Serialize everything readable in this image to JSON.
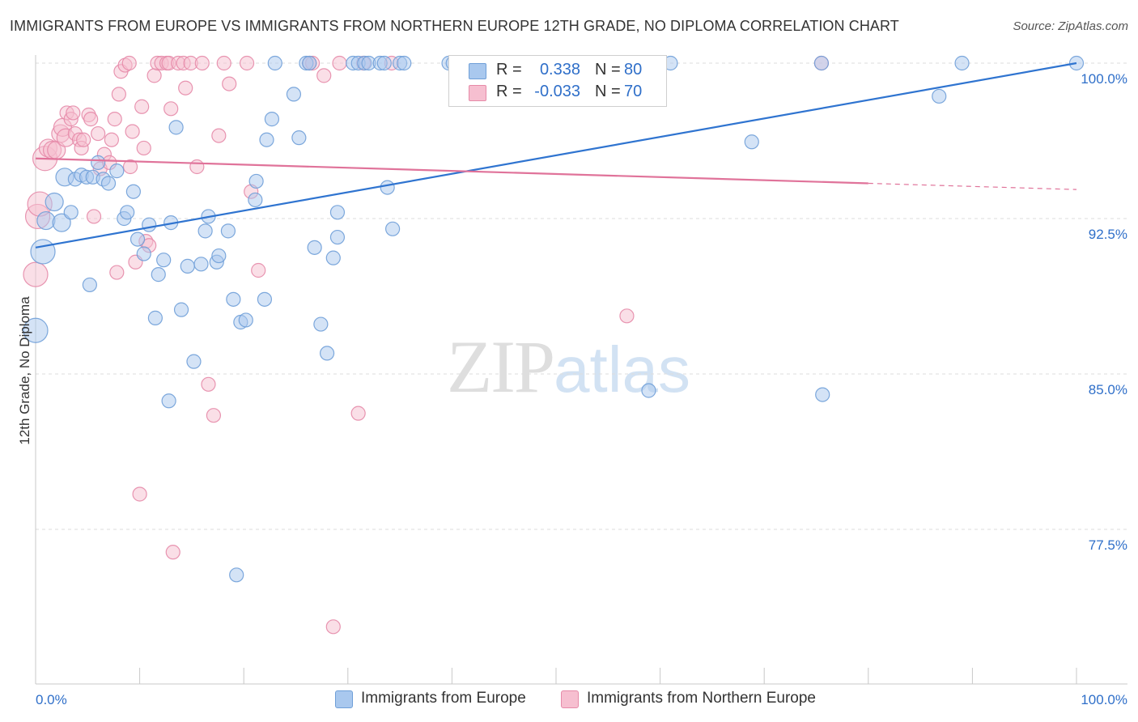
{
  "header": {
    "title": "IMMIGRANTS FROM EUROPE VS IMMIGRANTS FROM NORTHERN EUROPE 12TH GRADE, NO DIPLOMA CORRELATION CHART",
    "source": "Source: ZipAtlas.com"
  },
  "watermark": {
    "zip": "ZIP",
    "atlas": "atlas"
  },
  "legend": {
    "rows": [
      {
        "r_label": "R =",
        "r_value": "0.338",
        "n_label": "N =",
        "n_value": "80"
      },
      {
        "r_label": "R =",
        "r_value": "-0.033",
        "n_label": "N =",
        "n_value": "70"
      }
    ]
  },
  "bottom_legend": {
    "series1": "Immigrants from Europe",
    "series2": "Immigrants from Northern Europe"
  },
  "colors": {
    "blue_fill": "#a9c8ee",
    "blue_stroke": "#6f9fd8",
    "blue_line": "#2f74d0",
    "pink_fill": "#f6bfd0",
    "pink_stroke": "#e68aa8",
    "pink_line": "#e0739a",
    "value_text": "#2f6fc9",
    "grid": "#dddddd"
  },
  "chart_data": {
    "type": "scatter",
    "xlabel": "",
    "ylabel": "12th Grade, No Diploma",
    "xlim": [
      0,
      100
    ],
    "ylim": [
      71,
      101.4
    ],
    "x_tick_labels": [
      "0.0%",
      "100.0%"
    ],
    "y_ticks": [
      77.5,
      85.0,
      92.5,
      100.0
    ],
    "y_tick_labels": [
      "77.5%",
      "85.0%",
      "92.5%",
      "100.0%"
    ],
    "grid": true,
    "legend_position": "top-center",
    "series": [
      {
        "name": "Immigrants from Europe",
        "r": 0.338,
        "n": 80,
        "trend": {
          "x": [
            0,
            100
          ],
          "y": [
            91.1,
            100.0
          ]
        },
        "points": [
          [
            0.0,
            87.1
          ],
          [
            0.7,
            90.9
          ],
          [
            1.0,
            92.4
          ],
          [
            1.8,
            93.3
          ],
          [
            2.5,
            92.3
          ],
          [
            3.4,
            92.8
          ],
          [
            2.8,
            94.5
          ],
          [
            3.8,
            94.4
          ],
          [
            4.4,
            94.6
          ],
          [
            4.9,
            94.5
          ],
          [
            5.5,
            94.5
          ],
          [
            5.2,
            89.3
          ],
          [
            6.0,
            95.2
          ],
          [
            6.5,
            94.4
          ],
          [
            7.0,
            94.2
          ],
          [
            7.8,
            94.8
          ],
          [
            8.5,
            92.5
          ],
          [
            8.8,
            92.8
          ],
          [
            9.4,
            93.8
          ],
          [
            9.8,
            91.5
          ],
          [
            10.4,
            90.8
          ],
          [
            10.9,
            92.2
          ],
          [
            11.5,
            87.7
          ],
          [
            11.8,
            89.8
          ],
          [
            12.3,
            90.5
          ],
          [
            12.8,
            83.7
          ],
          [
            13.0,
            92.3
          ],
          [
            13.5,
            96.9
          ],
          [
            14.0,
            88.1
          ],
          [
            14.6,
            90.2
          ],
          [
            15.2,
            85.6
          ],
          [
            15.9,
            90.3
          ],
          [
            16.3,
            91.9
          ],
          [
            16.6,
            92.6
          ],
          [
            17.4,
            90.4
          ],
          [
            17.6,
            90.7
          ],
          [
            18.5,
            91.9
          ],
          [
            19.0,
            88.6
          ],
          [
            19.3,
            75.3
          ],
          [
            19.7,
            87.5
          ],
          [
            20.2,
            87.6
          ],
          [
            21.2,
            94.3
          ],
          [
            21.1,
            93.4
          ],
          [
            22.0,
            88.6
          ],
          [
            22.2,
            96.3
          ],
          [
            22.7,
            97.3
          ],
          [
            23.0,
            100.0
          ],
          [
            24.8,
            98.5
          ],
          [
            25.3,
            96.4
          ],
          [
            26.0,
            100.0
          ],
          [
            26.3,
            100.0
          ],
          [
            26.8,
            91.1
          ],
          [
            27.4,
            87.4
          ],
          [
            28.0,
            86.0
          ],
          [
            29.0,
            92.8
          ],
          [
            29.0,
            91.6
          ],
          [
            28.6,
            90.6
          ],
          [
            30.5,
            100.0
          ],
          [
            31.0,
            100.0
          ],
          [
            31.6,
            100.0
          ],
          [
            32.0,
            100.0
          ],
          [
            33.1,
            100.0
          ],
          [
            33.5,
            100.0
          ],
          [
            33.8,
            94.0
          ],
          [
            34.3,
            92.0
          ],
          [
            35.0,
            100.0
          ],
          [
            35.4,
            100.0
          ],
          [
            39.7,
            100.0
          ],
          [
            40.1,
            100.0
          ],
          [
            44.3,
            100.0
          ],
          [
            47.2,
            100.0
          ],
          [
            58.9,
            84.2
          ],
          [
            57.5,
            100.0
          ],
          [
            61.0,
            100.0
          ],
          [
            68.8,
            96.2
          ],
          [
            75.6,
            84.0
          ],
          [
            75.5,
            100.0
          ],
          [
            86.8,
            98.4
          ],
          [
            89.0,
            100.0
          ],
          [
            100.0,
            100.0
          ]
        ]
      },
      {
        "name": "Immigrants from Northern Europe",
        "r": -0.033,
        "n": 70,
        "trend": {
          "x": [
            0,
            80
          ],
          "y": [
            95.4,
            94.2
          ]
        },
        "trend_dashed": {
          "x": [
            80,
            100
          ],
          "y": [
            94.2,
            93.9
          ]
        },
        "points": [
          [
            0.0,
            89.8
          ],
          [
            0.2,
            92.6
          ],
          [
            0.4,
            93.2
          ],
          [
            0.9,
            95.4
          ],
          [
            1.2,
            95.9
          ],
          [
            1.6,
            95.8
          ],
          [
            2.0,
            95.8
          ],
          [
            2.4,
            96.6
          ],
          [
            2.6,
            96.9
          ],
          [
            2.9,
            96.4
          ],
          [
            3.0,
            97.6
          ],
          [
            3.4,
            97.3
          ],
          [
            3.6,
            97.6
          ],
          [
            3.8,
            96.6
          ],
          [
            4.2,
            96.3
          ],
          [
            4.4,
            95.9
          ],
          [
            4.6,
            96.3
          ],
          [
            5.1,
            97.5
          ],
          [
            5.3,
            97.3
          ],
          [
            5.6,
            92.6
          ],
          [
            6.0,
            96.6
          ],
          [
            6.2,
            94.9
          ],
          [
            6.6,
            95.6
          ],
          [
            7.1,
            95.2
          ],
          [
            7.3,
            96.3
          ],
          [
            7.6,
            97.3
          ],
          [
            7.8,
            89.9
          ],
          [
            8.0,
            98.5
          ],
          [
            8.2,
            99.6
          ],
          [
            8.6,
            99.9
          ],
          [
            9.0,
            100.0
          ],
          [
            9.1,
            95.0
          ],
          [
            9.3,
            96.7
          ],
          [
            9.6,
            90.4
          ],
          [
            10.0,
            79.2
          ],
          [
            10.2,
            97.9
          ],
          [
            10.4,
            95.9
          ],
          [
            10.6,
            91.4
          ],
          [
            10.9,
            91.2
          ],
          [
            11.4,
            99.4
          ],
          [
            11.7,
            100.0
          ],
          [
            12.1,
            100.0
          ],
          [
            12.6,
            100.0
          ],
          [
            12.8,
            100.0
          ],
          [
            13.0,
            97.8
          ],
          [
            13.2,
            76.4
          ],
          [
            13.7,
            100.0
          ],
          [
            14.2,
            100.0
          ],
          [
            14.4,
            98.8
          ],
          [
            14.9,
            100.0
          ],
          [
            15.5,
            95.0
          ],
          [
            16.0,
            100.0
          ],
          [
            16.6,
            84.5
          ],
          [
            17.1,
            83.0
          ],
          [
            17.6,
            96.5
          ],
          [
            18.1,
            100.0
          ],
          [
            18.6,
            99.0
          ],
          [
            20.3,
            100.0
          ],
          [
            20.7,
            93.8
          ],
          [
            21.4,
            90.0
          ],
          [
            26.3,
            100.0
          ],
          [
            26.6,
            100.0
          ],
          [
            27.7,
            99.4
          ],
          [
            28.6,
            72.8
          ],
          [
            29.2,
            100.0
          ],
          [
            31.0,
            83.1
          ],
          [
            31.5,
            100.0
          ],
          [
            34.2,
            100.0
          ],
          [
            56.8,
            87.8
          ],
          [
            75.5,
            100.0
          ]
        ]
      }
    ]
  }
}
